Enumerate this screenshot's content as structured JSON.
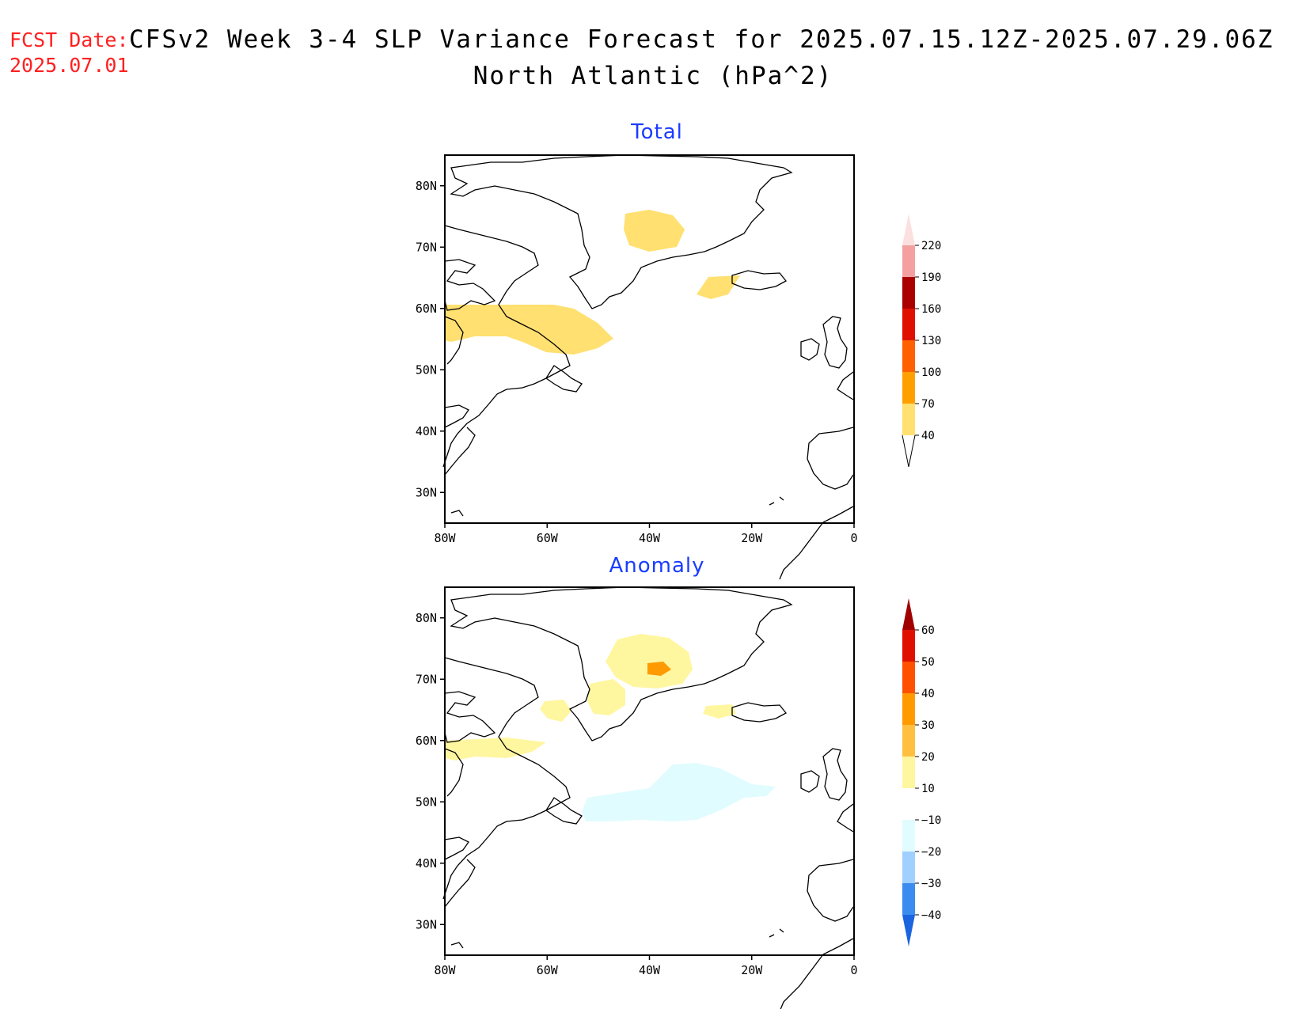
{
  "header": {
    "fcst_label": "FCST Date:",
    "fcst_date": "2025.07.01",
    "title": "CFSv2 Week 3-4 SLP Variance Forecast for 2025.07.15.12Z-2025.07.29.06Z",
    "subtitle": "North Atlantic (hPa^2)",
    "fcst_color": "#ff2020"
  },
  "panels": [
    {
      "title": "Total",
      "lat_ticks": [
        "80N",
        "70N",
        "60N",
        "50N",
        "40N",
        "30N"
      ],
      "lon_ticks": [
        "80W",
        "60W",
        "40W",
        "20W",
        "0"
      ],
      "colorbar": {
        "labels": [
          "220",
          "190",
          "160",
          "130",
          "100",
          "70",
          "40"
        ],
        "colors": [
          "#fce0e0",
          "#f4a0a0",
          "#aa0000",
          "#e01000",
          "#ff6000",
          "#ffa000",
          "#ffe070"
        ]
      }
    },
    {
      "title": "Anomaly",
      "lat_ticks": [
        "80N",
        "70N",
        "60N",
        "50N",
        "40N",
        "30N"
      ],
      "lon_ticks": [
        "80W",
        "60W",
        "40W",
        "20W",
        "0"
      ],
      "colorbar": {
        "labels": [
          "60",
          "50",
          "40",
          "30",
          "20",
          "10",
          "−10",
          "−20",
          "−30",
          "−40"
        ],
        "colors": [
          "#a00000",
          "#e01000",
          "#ff5000",
          "#ff9a00",
          "#ffc040",
          "#fff6a0",
          "#ffffff",
          "#e0fcff",
          "#a0d0ff",
          "#3c8cf0",
          "#1a64e0"
        ]
      }
    }
  ],
  "map": {
    "lon_range": [
      "80W",
      "0"
    ],
    "lat_range": [
      "25N",
      "85N"
    ]
  }
}
